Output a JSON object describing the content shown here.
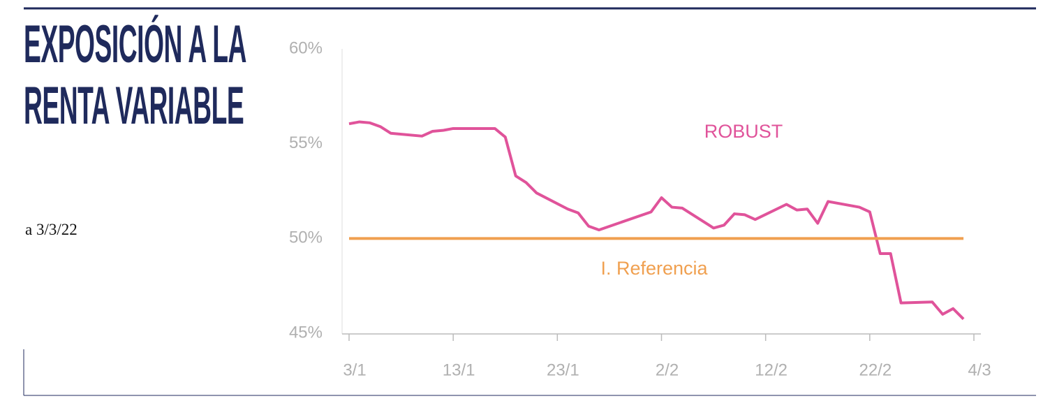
{
  "chart_data": {
    "type": "line",
    "title": "EXPOSICIÓN A LA RENTA VARIABLE",
    "subtitle": "a 3/3/22",
    "xlim": [
      "3/1",
      "4/3"
    ],
    "xticks": [
      "3/1",
      "13/1",
      "23/1",
      "2/2",
      "12/2",
      "22/2",
      "4/3"
    ],
    "ylim": [
      45,
      60
    ],
    "yticks": [
      {
        "value": 45,
        "label": "45%"
      },
      {
        "value": 50,
        "label": "50%"
      },
      {
        "value": 55,
        "label": "55%"
      },
      {
        "value": 60,
        "label": "60%"
      }
    ],
    "grid": false,
    "series": [
      {
        "name": "ROBUST",
        "color": "#e0539a",
        "x": [
          "3/1",
          "4/1",
          "5/1",
          "6/1",
          "7/1",
          "10/1",
          "11/1",
          "12/1",
          "13/1",
          "14/1",
          "17/1",
          "18/1",
          "19/1",
          "20/1",
          "21/1",
          "24/1",
          "25/1",
          "26/1",
          "27/1",
          "1/2",
          "2/2",
          "3/2",
          "4/2",
          "7/2",
          "8/2",
          "9/2",
          "10/2",
          "11/2",
          "14/2",
          "15/2",
          "16/2",
          "17/2",
          "18/2",
          "21/2",
          "22/2",
          "23/2",
          "24/2",
          "25/2",
          "28/2",
          "1/3",
          "2/3",
          "3/3"
        ],
        "values": [
          56.05,
          56.15,
          56.1,
          55.9,
          55.55,
          55.4,
          55.65,
          55.7,
          55.8,
          55.8,
          55.8,
          55.35,
          53.3,
          52.95,
          52.4,
          51.55,
          51.35,
          50.65,
          50.45,
          51.4,
          52.15,
          51.65,
          51.6,
          50.55,
          50.7,
          51.3,
          51.25,
          51.0,
          51.8,
          51.5,
          51.55,
          50.8,
          51.95,
          51.65,
          51.4,
          49.2,
          49.2,
          46.6,
          46.65,
          46.0,
          46.3,
          45.75
        ]
      },
      {
        "name": "I. Referencia",
        "color": "#f0a050",
        "x": [
          "3/1",
          "3/3"
        ],
        "values": [
          50,
          50
        ]
      }
    ]
  }
}
